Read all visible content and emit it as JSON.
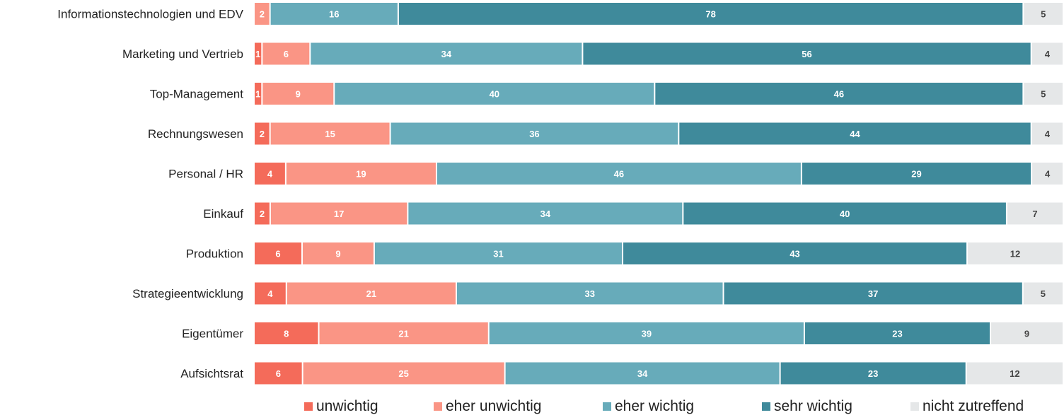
{
  "chart_data": {
    "type": "bar",
    "orientation": "horizontal",
    "stacked": true,
    "title": "",
    "xlabel": "",
    "ylabel": "",
    "xlim": [
      0,
      100
    ],
    "grid": false,
    "legend_position": "bottom",
    "categories": [
      "Informationstechnologien und EDV",
      "Marketing und Vertrieb",
      "Top-Management",
      "Rechnungswesen",
      "Personal / HR",
      "Einkauf",
      "Produktion",
      "Strategieentwicklung",
      "Eigentümer",
      "Aufsichtsrat"
    ],
    "series": [
      {
        "name": "unwichtig",
        "color": "#F46B5A",
        "label_color": "#FFFFFF",
        "values": [
          0,
          1,
          1,
          2,
          4,
          2,
          6,
          4,
          8,
          6
        ]
      },
      {
        "name": "eher unwichtig",
        "color": "#FA9585",
        "label_color": "#FFFFFF",
        "values": [
          2,
          6,
          9,
          15,
          19,
          17,
          9,
          21,
          21,
          25
        ]
      },
      {
        "name": "eher wichtig",
        "color": "#67ABBA",
        "label_color": "#FFFFFF",
        "values": [
          16,
          34,
          40,
          36,
          46,
          34,
          31,
          33,
          39,
          34
        ]
      },
      {
        "name": "sehr wichtig",
        "color": "#3F8A9B",
        "label_color": "#FFFFFF",
        "values": [
          78,
          56,
          46,
          44,
          29,
          40,
          43,
          37,
          23,
          23
        ]
      },
      {
        "name": "nicht zutreffend",
        "color": "#E5E7E8",
        "label_color": "#444444",
        "values": [
          5,
          4,
          5,
          4,
          4,
          7,
          12,
          5,
          9,
          12
        ]
      }
    ]
  }
}
